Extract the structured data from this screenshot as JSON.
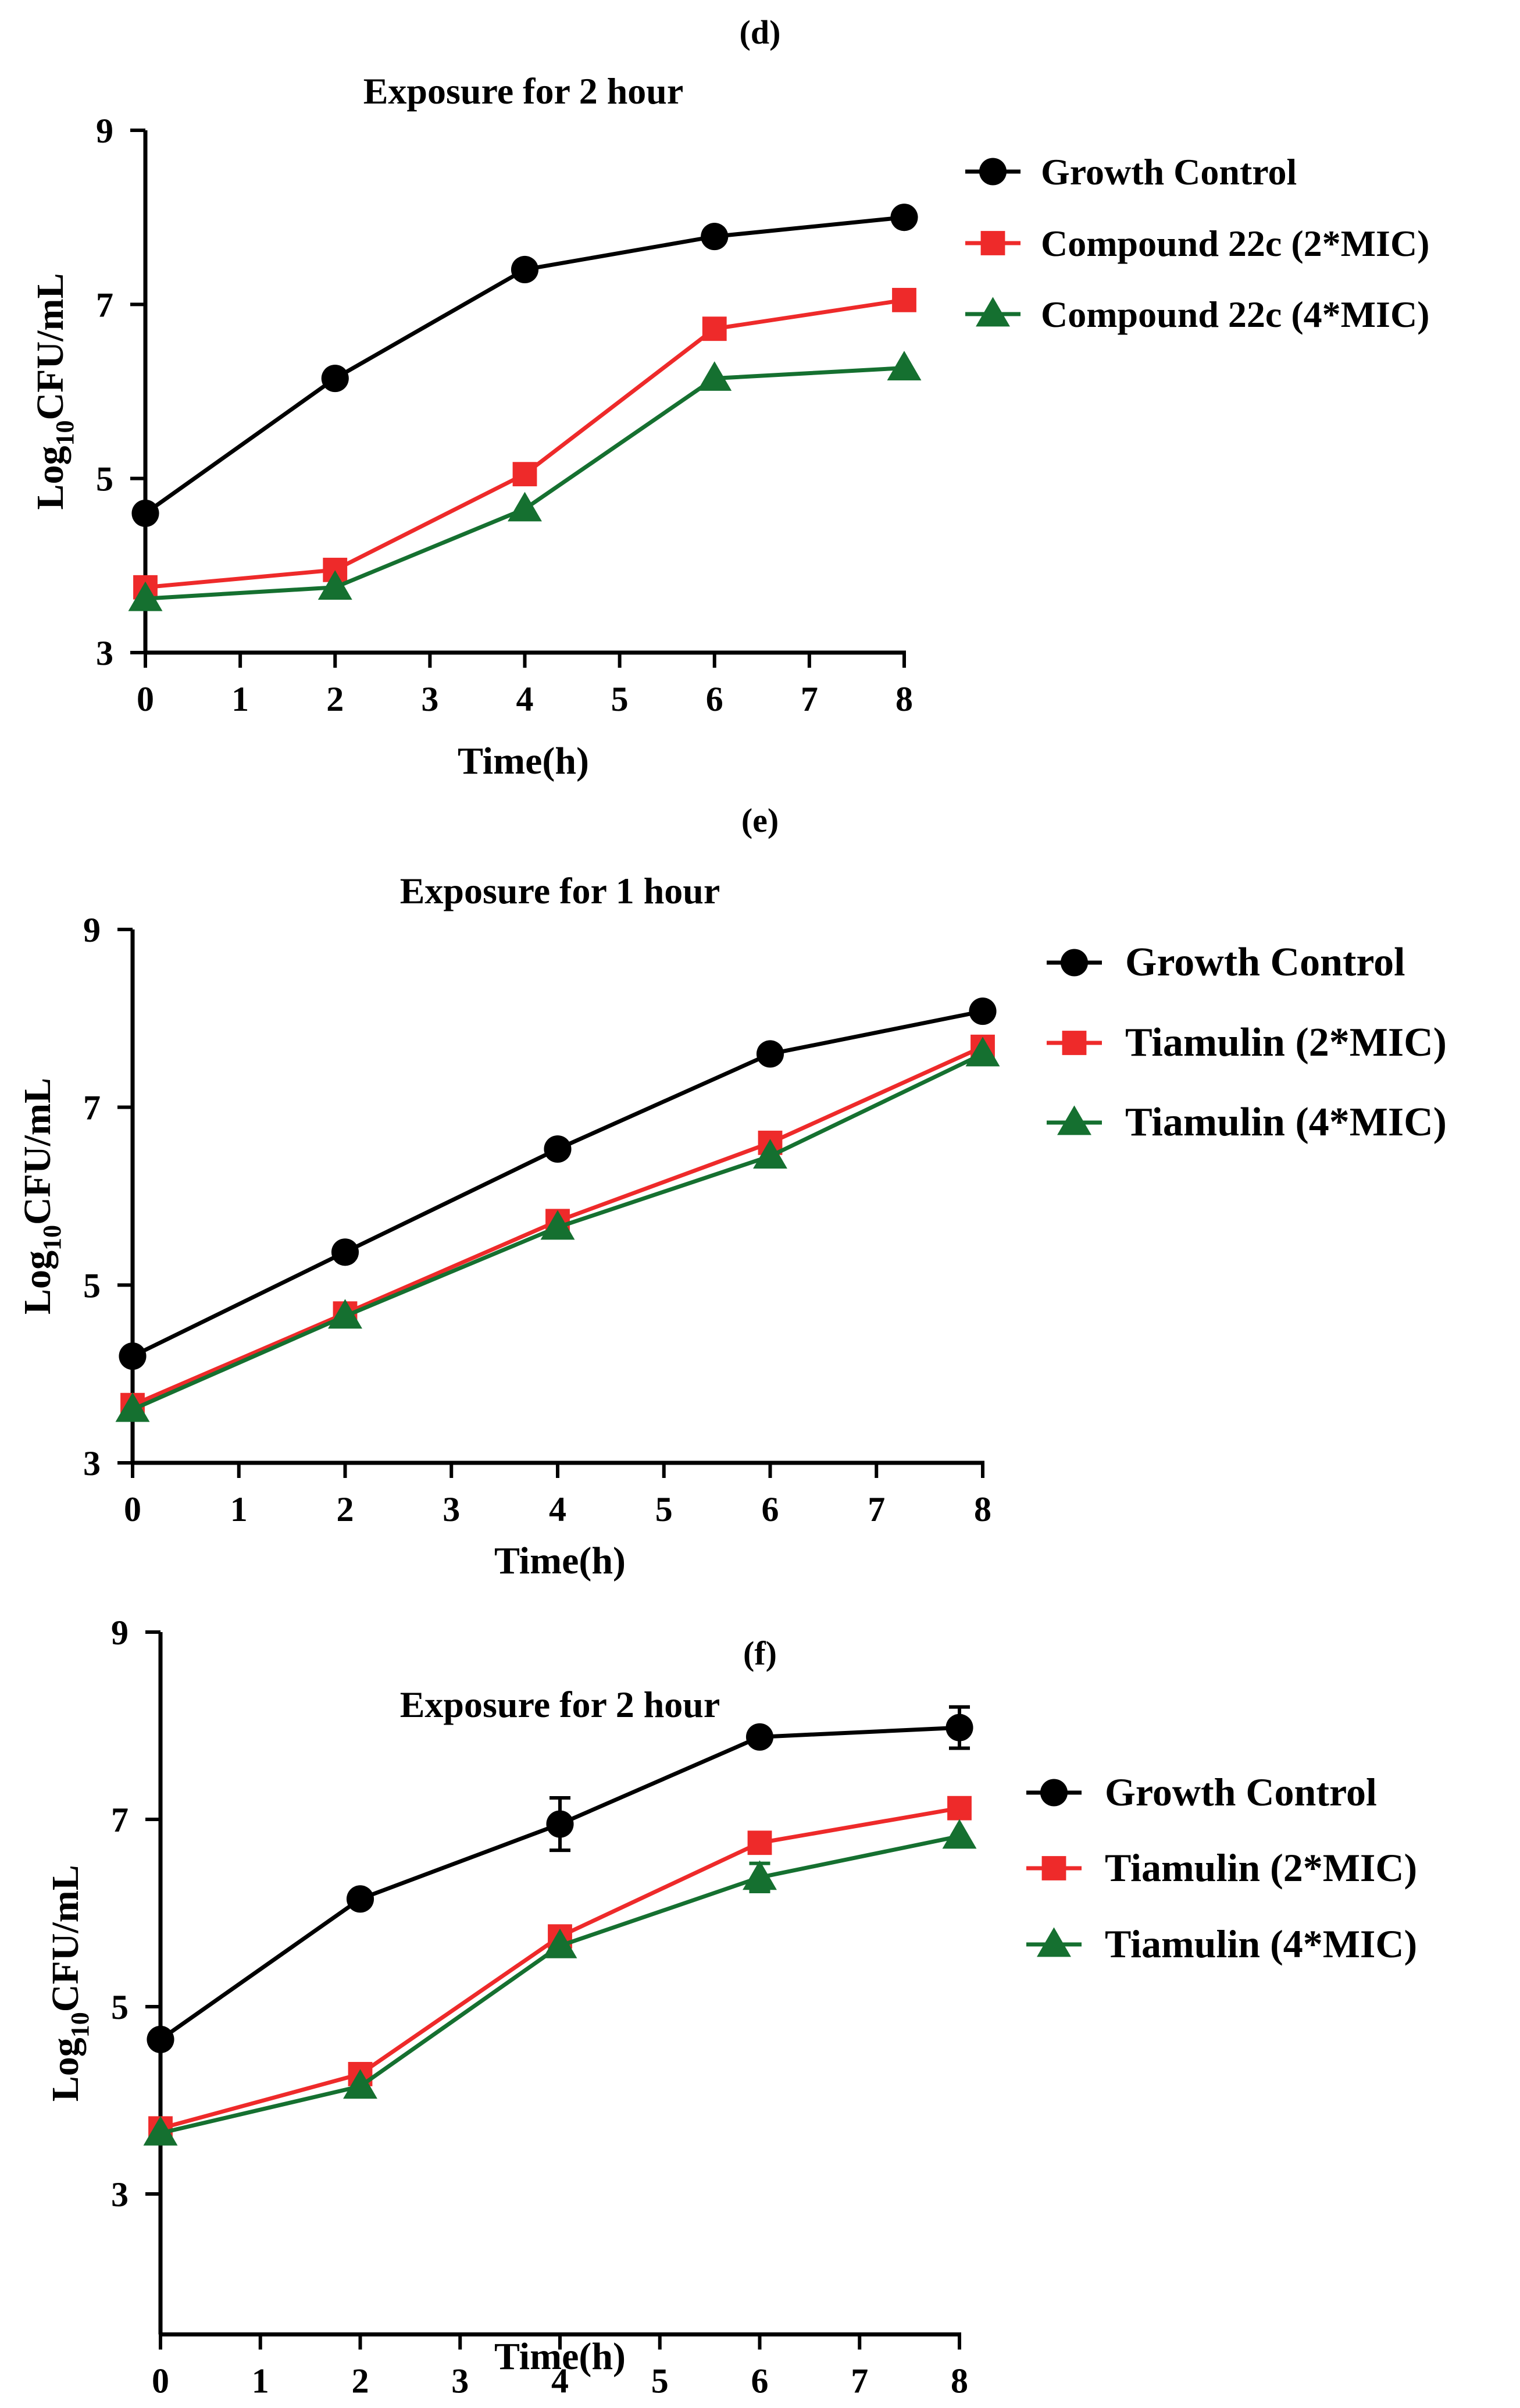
{
  "chart_data": [
    {
      "type": "line",
      "panel_label": "(d)",
      "title": "Exposure for 2 hour",
      "xlabel": "Time(h)",
      "ylabel_main": "Log",
      "ylabel_sub": "10",
      "ylabel_rest": "CFU/mL",
      "xticks": [
        0,
        1,
        2,
        3,
        4,
        5,
        6,
        7,
        8
      ],
      "yticks": [
        3,
        5,
        7,
        9
      ],
      "xlim": [
        0,
        8
      ],
      "ylim": [
        3,
        9
      ],
      "grid": false,
      "legend_position": "right",
      "series": [
        {
          "name": "Growth Control",
          "color": "#000000",
          "marker": "circle",
          "x": [
            0,
            2,
            4,
            6,
            8
          ],
          "values": [
            4.6,
            6.15,
            7.4,
            7.78,
            8.0
          ]
        },
        {
          "name": "Compound 22c (2*MIC)",
          "color": "#ee2a2a",
          "marker": "square",
          "x": [
            0,
            2,
            4,
            6,
            8
          ],
          "values": [
            3.75,
            3.95,
            5.05,
            6.72,
            7.05
          ]
        },
        {
          "name": "Compound 22c (4*MIC)",
          "color": "#157030",
          "marker": "triangle",
          "x": [
            0,
            2,
            4,
            6,
            8
          ],
          "values": [
            3.62,
            3.75,
            4.65,
            6.15,
            6.27
          ]
        }
      ]
    },
    {
      "type": "line",
      "panel_label": "(e)",
      "title": "Exposure for 1 hour",
      "xlabel": "Time(h)",
      "ylabel_main": "Log",
      "ylabel_sub": "10",
      "ylabel_rest": "CFU/mL",
      "xticks": [
        0,
        1,
        2,
        3,
        4,
        5,
        6,
        7,
        8
      ],
      "yticks": [
        3,
        5,
        7,
        9
      ],
      "xlim": [
        0,
        8
      ],
      "ylim": [
        3,
        9
      ],
      "grid": false,
      "legend_position": "right",
      "series": [
        {
          "name": "Growth Control",
          "color": "#000000",
          "marker": "circle",
          "x": [
            0,
            2,
            4,
            6,
            8
          ],
          "values": [
            4.2,
            5.37,
            6.53,
            7.6,
            8.08
          ]
        },
        {
          "name": "Tiamulin (2*MIC)",
          "color": "#ee2a2a",
          "marker": "square",
          "x": [
            0,
            2,
            4,
            6,
            8
          ],
          "values": [
            3.65,
            4.68,
            5.72,
            6.6,
            7.68
          ]
        },
        {
          "name": "Tiamulin (4*MIC)",
          "color": "#157030",
          "marker": "triangle",
          "x": [
            0,
            2,
            4,
            6,
            8
          ],
          "values": [
            3.6,
            4.65,
            5.65,
            6.45,
            7.6
          ]
        }
      ]
    },
    {
      "type": "line",
      "panel_label": "(f)",
      "title": "Exposure for 2 hour",
      "xlabel": "Time(h)",
      "ylabel_main": "Log",
      "ylabel_sub": "10",
      "ylabel_rest": "CFU/mL",
      "xticks": [
        0,
        1,
        2,
        3,
        4,
        5,
        6,
        7,
        8
      ],
      "yticks": [
        3,
        5,
        7,
        9
      ],
      "xlim": [
        0,
        8
      ],
      "ylim": [
        1.5,
        9
      ],
      "grid": false,
      "legend_position": "right",
      "series": [
        {
          "name": "Growth Control",
          "color": "#000000",
          "marker": "circle",
          "x": [
            0,
            2,
            4,
            6,
            8
          ],
          "values": [
            4.65,
            6.15,
            6.95,
            7.88,
            7.98
          ],
          "errors": [
            0,
            0,
            0.28,
            0,
            0.22
          ]
        },
        {
          "name": "Tiamulin (2*MIC)",
          "color": "#ee2a2a",
          "marker": "square",
          "x": [
            0,
            2,
            4,
            6,
            8
          ],
          "values": [
            3.7,
            4.28,
            5.75,
            6.75,
            7.12
          ]
        },
        {
          "name": "Tiamulin (4*MIC)",
          "color": "#157030",
          "marker": "triangle",
          "x": [
            0,
            2,
            4,
            6,
            8
          ],
          "values": [
            3.65,
            4.15,
            5.65,
            6.38,
            6.82
          ],
          "errors": [
            0,
            0,
            0,
            0.15,
            0
          ]
        }
      ]
    }
  ]
}
